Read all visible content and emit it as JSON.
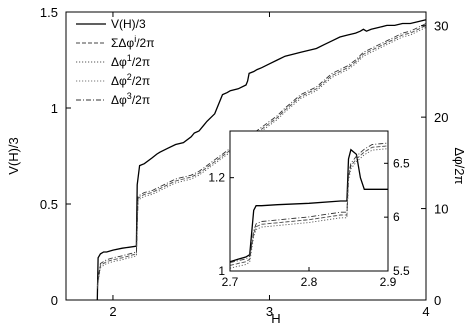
{
  "chart_data": [
    {
      "type": "line",
      "xlabel": "H",
      "ylabel": "V(H)/3",
      "ylabel_right": "Δφ/2π",
      "xlim": [
        1.7,
        4.0
      ],
      "ylim": [
        0,
        1.5
      ],
      "ylim_right": [
        0,
        31.5
      ],
      "x_ticks": [
        "2",
        "3",
        "4"
      ],
      "y_ticks": [
        "0",
        "0.5",
        "1",
        "1.5"
      ],
      "y_ticks_right": [
        "0",
        "10",
        "20",
        "30"
      ],
      "legend_position": "top-right",
      "series": [
        {
          "name": "V(H)/3",
          "style": "solid",
          "color": "#000000",
          "x": [
            1.9,
            1.905,
            1.92,
            1.94,
            1.96,
            2.0,
            2.06,
            2.15,
            2.155,
            2.17,
            2.2,
            2.25,
            2.28,
            2.3,
            2.35,
            2.4,
            2.45,
            2.5,
            2.52,
            2.55,
            2.58,
            2.6,
            2.65,
            2.7,
            2.73,
            2.75,
            2.8,
            2.85,
            2.86,
            2.87,
            2.9,
            2.92,
            2.95,
            3.0,
            3.05,
            3.1,
            3.15,
            3.2,
            3.25,
            3.3,
            3.35,
            3.4,
            3.45,
            3.5,
            3.55,
            3.58,
            3.6,
            3.62,
            3.65,
            3.7,
            3.75,
            3.8,
            3.85,
            3.9,
            3.95,
            4.0
          ],
          "values": [
            0.0,
            0.22,
            0.24,
            0.25,
            0.25,
            0.26,
            0.27,
            0.28,
            0.6,
            0.7,
            0.71,
            0.74,
            0.76,
            0.77,
            0.79,
            0.81,
            0.82,
            0.85,
            0.87,
            0.88,
            0.91,
            0.93,
            0.97,
            1.07,
            1.08,
            1.09,
            1.1,
            1.12,
            1.14,
            1.18,
            1.19,
            1.2,
            1.21,
            1.23,
            1.25,
            1.27,
            1.28,
            1.29,
            1.3,
            1.31,
            1.33,
            1.35,
            1.37,
            1.38,
            1.39,
            1.4,
            1.41,
            1.4,
            1.41,
            1.42,
            1.43,
            1.43,
            1.44,
            1.44,
            1.45,
            1.46
          ]
        },
        {
          "name": "ΣΔφ^i/2π",
          "style": "dashed",
          "color": "#444444",
          "x": [
            1.9,
            1.92,
            1.96,
            2.0,
            2.06,
            2.15,
            2.16,
            2.2,
            2.25,
            2.3,
            2.35,
            2.4,
            2.45,
            2.5,
            2.55,
            2.6,
            2.65,
            2.7,
            2.75,
            2.8,
            2.85,
            2.9,
            2.95,
            3.0,
            3.05,
            3.1,
            3.2,
            3.3,
            3.4,
            3.5,
            3.55,
            3.6,
            3.65,
            3.7,
            3.75,
            3.8,
            3.85,
            3.9,
            3.95,
            4.0
          ],
          "values": [
            0.07,
            0.18,
            0.2,
            0.21,
            0.22,
            0.24,
            0.53,
            0.55,
            0.56,
            0.58,
            0.6,
            0.62,
            0.63,
            0.64,
            0.66,
            0.69,
            0.72,
            0.75,
            0.78,
            0.8,
            0.82,
            0.86,
            0.89,
            0.92,
            0.95,
            0.99,
            1.06,
            1.1,
            1.17,
            1.21,
            1.24,
            1.28,
            1.3,
            1.32,
            1.34,
            1.36,
            1.38,
            1.39,
            1.41,
            1.43
          ]
        },
        {
          "name": "Δφ^1/2π",
          "style": "dotted",
          "color": "#555555",
          "x": [
            1.9,
            1.92,
            1.96,
            2.0,
            2.06,
            2.15,
            2.16,
            2.2,
            2.25,
            2.3,
            2.35,
            2.4,
            2.45,
            2.5,
            2.55,
            2.6,
            2.65,
            2.7,
            2.75,
            2.8,
            2.85,
            2.9,
            2.95,
            3.0,
            3.05,
            3.1,
            3.2,
            3.3,
            3.4,
            3.5,
            3.55,
            3.6,
            3.65,
            3.7,
            3.75,
            3.8,
            3.85,
            3.9,
            3.95,
            4.0
          ],
          "values": [
            0.06,
            0.17,
            0.19,
            0.2,
            0.21,
            0.23,
            0.52,
            0.54,
            0.55,
            0.57,
            0.59,
            0.61,
            0.62,
            0.63,
            0.65,
            0.68,
            0.71,
            0.74,
            0.77,
            0.79,
            0.81,
            0.85,
            0.88,
            0.91,
            0.94,
            0.98,
            1.05,
            1.09,
            1.16,
            1.2,
            1.23,
            1.27,
            1.29,
            1.31,
            1.33,
            1.35,
            1.37,
            1.38,
            1.4,
            1.42
          ]
        },
        {
          "name": "Δφ^2/2π",
          "style": "dotted",
          "color": "#777777",
          "x": [
            1.9,
            1.92,
            1.96,
            2.0,
            2.06,
            2.15,
            2.16,
            2.2,
            2.25,
            2.3,
            2.35,
            2.4,
            2.45,
            2.5,
            2.55,
            2.6,
            2.65,
            2.7,
            2.75,
            2.8,
            2.85,
            2.9,
            2.95,
            3.0,
            3.05,
            3.1,
            3.2,
            3.3,
            3.4,
            3.5,
            3.55,
            3.6,
            3.65,
            3.7,
            3.75,
            3.8,
            3.85,
            3.9,
            3.95,
            4.0
          ],
          "values": [
            0.07,
            0.18,
            0.2,
            0.21,
            0.22,
            0.24,
            0.53,
            0.55,
            0.56,
            0.58,
            0.6,
            0.62,
            0.63,
            0.64,
            0.66,
            0.69,
            0.72,
            0.75,
            0.78,
            0.8,
            0.82,
            0.86,
            0.89,
            0.92,
            0.95,
            0.99,
            1.06,
            1.1,
            1.17,
            1.21,
            1.24,
            1.28,
            1.3,
            1.32,
            1.34,
            1.36,
            1.38,
            1.39,
            1.41,
            1.43
          ]
        },
        {
          "name": "Δφ^3/2π",
          "style": "dashdot",
          "color": "#333333",
          "x": [
            1.9,
            1.92,
            1.96,
            2.0,
            2.06,
            2.15,
            2.16,
            2.2,
            2.25,
            2.3,
            2.35,
            2.4,
            2.45,
            2.5,
            2.55,
            2.6,
            2.65,
            2.7,
            2.75,
            2.8,
            2.85,
            2.9,
            2.95,
            3.0,
            3.05,
            3.1,
            3.2,
            3.3,
            3.4,
            3.5,
            3.55,
            3.6,
            3.65,
            3.7,
            3.75,
            3.8,
            3.85,
            3.9,
            3.95,
            4.0
          ],
          "values": [
            0.08,
            0.19,
            0.21,
            0.22,
            0.23,
            0.25,
            0.54,
            0.56,
            0.57,
            0.59,
            0.61,
            0.63,
            0.64,
            0.65,
            0.67,
            0.7,
            0.73,
            0.76,
            0.79,
            0.81,
            0.83,
            0.87,
            0.9,
            0.93,
            0.96,
            1.0,
            1.07,
            1.11,
            1.18,
            1.22,
            1.25,
            1.29,
            1.31,
            1.33,
            1.35,
            1.37,
            1.39,
            1.4,
            1.42,
            1.44
          ]
        }
      ]
    },
    {
      "type": "line",
      "xlim": [
        2.7,
        2.9
      ],
      "ylim": [
        1.0,
        1.3
      ],
      "ylim_right": [
        5.5,
        6.8
      ],
      "x_ticks": [
        "2.7",
        "2.8",
        "2.9"
      ],
      "y_ticks": [
        "1",
        "1.2"
      ],
      "y_ticks_right": [
        "5.5",
        "6",
        "6.5"
      ],
      "series": [
        {
          "style": "solid",
          "color": "#000000",
          "x": [
            2.7,
            2.71,
            2.72,
            2.725,
            2.73,
            2.733,
            2.74,
            2.76,
            2.8,
            2.84,
            2.848,
            2.85,
            2.853,
            2.86,
            2.865,
            2.87,
            2.88,
            2.89,
            2.9
          ],
          "values": [
            1.02,
            1.025,
            1.03,
            1.035,
            1.13,
            1.14,
            1.14,
            1.142,
            1.145,
            1.15,
            1.15,
            1.24,
            1.26,
            1.25,
            1.2,
            1.175,
            1.175,
            1.175,
            1.175
          ]
        },
        {
          "style": "dashed",
          "color": "#444444",
          "x": [
            2.7,
            2.72,
            2.725,
            2.73,
            2.733,
            2.74,
            2.8,
            2.84,
            2.848,
            2.85,
            2.853,
            2.86,
            2.87,
            2.88,
            2.9
          ],
          "values": [
            1.012,
            1.02,
            1.025,
            1.08,
            1.095,
            1.1,
            1.11,
            1.12,
            1.12,
            1.2,
            1.225,
            1.24,
            1.255,
            1.265,
            1.268
          ]
        },
        {
          "style": "dotted",
          "color": "#555555",
          "x": [
            2.7,
            2.72,
            2.725,
            2.73,
            2.733,
            2.74,
            2.8,
            2.84,
            2.848,
            2.85,
            2.853,
            2.86,
            2.87,
            2.88,
            2.9
          ],
          "values": [
            1.006,
            1.014,
            1.019,
            1.074,
            1.089,
            1.094,
            1.104,
            1.114,
            1.114,
            1.194,
            1.219,
            1.234,
            1.249,
            1.259,
            1.262
          ]
        },
        {
          "style": "dotted",
          "color": "#777777",
          "x": [
            2.7,
            2.72,
            2.725,
            2.73,
            2.733,
            2.74,
            2.8,
            2.84,
            2.848,
            2.85,
            2.853,
            2.86,
            2.87,
            2.88,
            2.9
          ],
          "values": [
            1.012,
            1.02,
            1.025,
            1.08,
            1.095,
            1.1,
            1.11,
            1.12,
            1.12,
            1.2,
            1.225,
            1.24,
            1.255,
            1.265,
            1.268
          ]
        },
        {
          "style": "dashdot",
          "color": "#333333",
          "x": [
            2.7,
            2.72,
            2.725,
            2.73,
            2.733,
            2.74,
            2.8,
            2.84,
            2.848,
            2.85,
            2.853,
            2.86,
            2.87,
            2.88,
            2.9
          ],
          "values": [
            1.018,
            1.026,
            1.031,
            1.086,
            1.101,
            1.106,
            1.116,
            1.126,
            1.126,
            1.206,
            1.231,
            1.246,
            1.261,
            1.271,
            1.274
          ]
        }
      ]
    }
  ]
}
